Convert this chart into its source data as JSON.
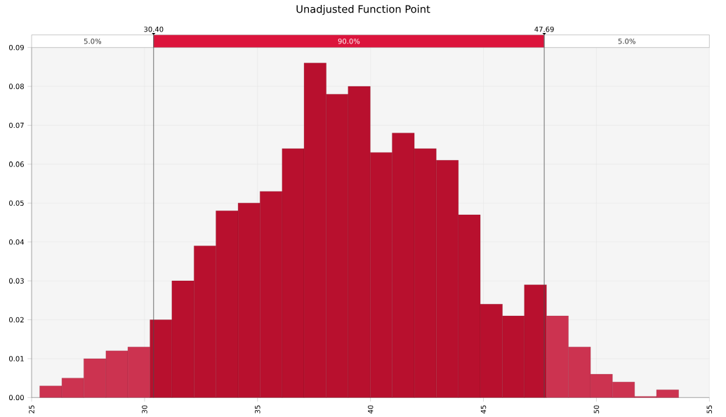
{
  "chart_data": {
    "type": "histogram",
    "title": "Unadjusted Function Point",
    "bins": [
      25.36,
      26.34,
      27.31,
      28.29,
      29.26,
      30.24,
      31.21,
      32.19,
      33.16,
      34.14,
      35.11,
      36.09,
      37.06,
      38.04,
      39.01,
      39.99,
      40.96,
      41.94,
      42.91,
      43.89,
      44.86,
      45.84,
      46.81,
      47.79,
      48.76,
      49.74,
      50.71,
      51.69,
      52.66,
      53.64
    ],
    "values": [
      0.003,
      0.005,
      0.01,
      0.012,
      0.013,
      0.02,
      0.03,
      0.039,
      0.048,
      0.05,
      0.053,
      0.064,
      0.086,
      0.078,
      0.08,
      0.063,
      0.068,
      0.064,
      0.061,
      0.047,
      0.024,
      0.021,
      0.029,
      0.021,
      0.013,
      0.006,
      0.004,
      0.0003,
      0.002
    ],
    "colors": [
      "#cc3350",
      "#cc3350",
      "#cc3350",
      "#cc3350",
      "#cc3350",
      "#b8102e",
      "#b8102e",
      "#b8102e",
      "#b8102e",
      "#b8102e",
      "#b8102e",
      "#b8102e",
      "#b8102e",
      "#b8102e",
      "#b8102e",
      "#b8102e",
      "#b8102e",
      "#b8102e",
      "#b8102e",
      "#b8102e",
      "#b8102e",
      "#b8102e",
      "#b8102e",
      "#cc3350",
      "#cc3350",
      "#cc3350",
      "#cc3350",
      "#cc3350",
      "#cc3350"
    ],
    "xlim": [
      25,
      55
    ],
    "xticks": [
      25,
      30,
      35,
      40,
      45,
      50,
      55
    ],
    "ylim": [
      0,
      0.09
    ],
    "yticks": [
      {
        "value": 0,
        "label": "0.00"
      },
      {
        "value": 0.01,
        "label": "0.01"
      },
      {
        "value": 0.02,
        "label": "0.02"
      },
      {
        "value": 0.03,
        "label": "0.03"
      },
      {
        "value": 0.04,
        "label": "0.04"
      },
      {
        "value": 0.05,
        "label": "0.05"
      },
      {
        "value": 0.06,
        "label": "0.06"
      },
      {
        "value": 0.07,
        "label": "0.07"
      },
      {
        "value": 0.08,
        "label": "0.08"
      },
      {
        "value": 0.09,
        "label": "0.09"
      }
    ],
    "grid": true,
    "ref_lines": [
      {
        "axis": "x",
        "value": 30.4,
        "label": "30.40"
      },
      {
        "axis": "x",
        "value": 47.69,
        "label": "47.69"
      }
    ],
    "annotations": [
      "5.0%",
      "90.0%",
      "5.0%"
    ]
  }
}
